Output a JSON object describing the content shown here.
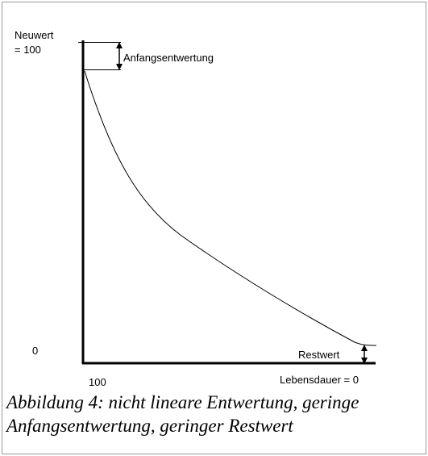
{
  "figure": {
    "labels": {
      "neuwert": "Neuwert",
      "neuwert_value": "= 100",
      "anfangsentwertung": "Anfangsentwertung",
      "y_zero": "0",
      "restwert": "Restwert",
      "x_start": "100",
      "lebensdauer": "Lebensdauer = 0"
    },
    "caption": "Abbildung 4: nicht lineare Entwertung, geringe Anfangsentwertung, geringer Restwert"
  }
}
